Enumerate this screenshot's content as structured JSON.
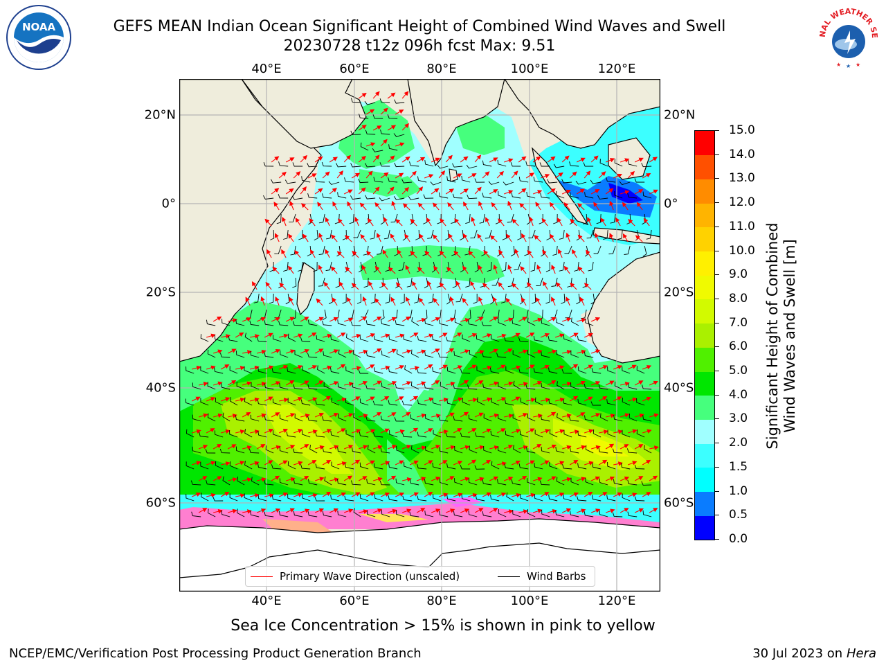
{
  "title_line1": "GEFS MEAN Indian Ocean Significant Height of Combined Wind Waves and Swell",
  "title_line2": "20230728 t12z 096h fcst   Max: 9.51",
  "logos": {
    "left": "noaa-logo",
    "right": "national-weather-service-logo",
    "left_text": "NOAA",
    "right_text": "NATIONAL WEATHER SERVICE"
  },
  "map": {
    "lon_range": [
      20,
      130
    ],
    "lat_range": [
      -70,
      28
    ],
    "lon_labels": [
      "40°E",
      "60°E",
      "80°E",
      "100°E",
      "120°E"
    ],
    "lat_labels_left": [
      "20°N",
      "0°",
      "20°S",
      "40°S",
      "60°S"
    ],
    "lat_labels_right": [
      "20°N",
      "0°",
      "20°S",
      "40°S",
      "60°S"
    ]
  },
  "colorbar": {
    "ticks": [
      "0.0",
      "0.5",
      "1.0",
      "1.5",
      "2.0",
      "3.0",
      "4.0",
      "5.0",
      "6.0",
      "7.0",
      "8.0",
      "9.0",
      "10.0",
      "11.0",
      "12.0",
      "13.0",
      "14.0",
      "15.0"
    ],
    "colors": [
      "#0000ff",
      "#0a7cff",
      "#00ffff",
      "#3cffff",
      "#a0ffff",
      "#46ff7d",
      "#00e600",
      "#50f000",
      "#aaf000",
      "#d2fa00",
      "#f0fa00",
      "#fff000",
      "#ffd200",
      "#ffb400",
      "#ff8c00",
      "#ff5000",
      "#ff0000"
    ],
    "label_line1": "Significant Height of Combined",
    "label_line2": "Wind Waves and Swell [m]"
  },
  "legend": {
    "primary_wave": "Primary Wave Direction (unscaled)",
    "wind_barbs": "Wind Barbs",
    "primary_color": "#ff0000",
    "barb_color": "#000000"
  },
  "subtitle": "Sea Ice Concentration > 15% is shown in pink to yellow",
  "footer_left": "NCEP/EMC/Verification Post Processing Product Generation Branch",
  "footer_date": "30 Jul 2023 on ",
  "footer_host": "Hera"
}
